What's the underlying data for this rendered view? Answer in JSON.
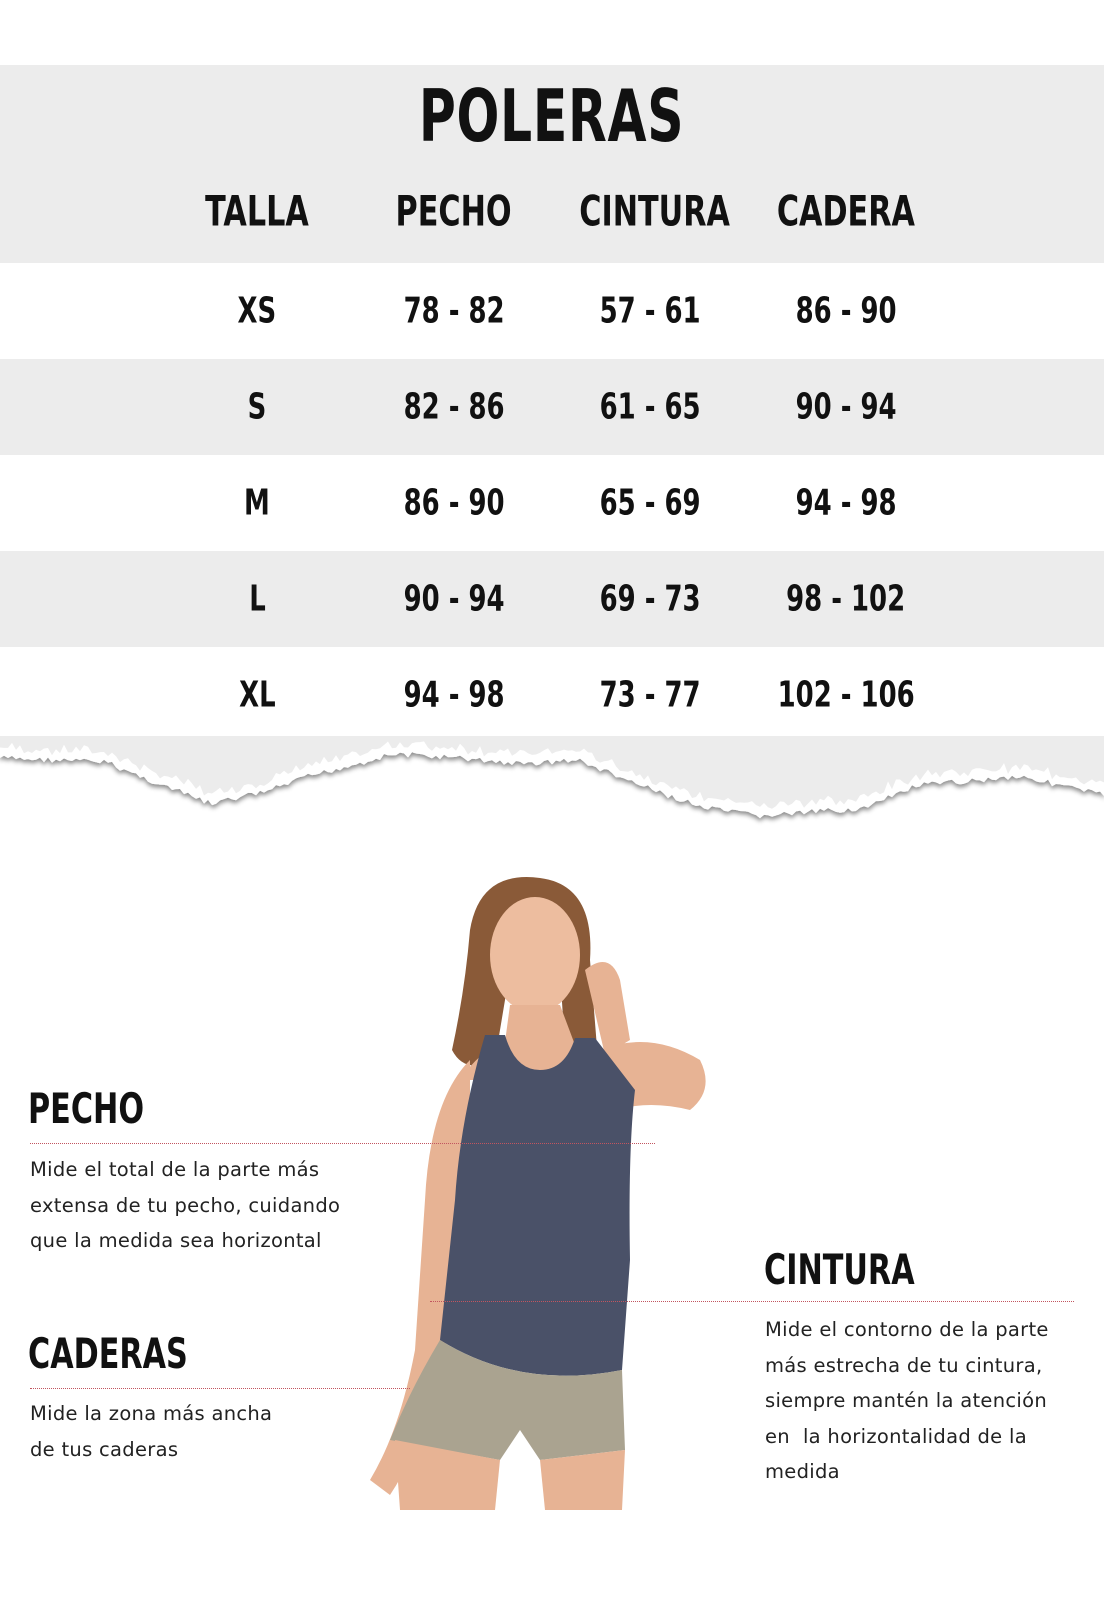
{
  "title": "POLERAS",
  "columns": [
    "TALLA",
    "PECHO",
    "CINTURA",
    "CADERA"
  ],
  "rows": [
    [
      "XS",
      "78 - 82",
      "57 - 61",
      "86 - 90"
    ],
    [
      "S",
      "82 - 86",
      "61 - 65",
      "90 - 94"
    ],
    [
      "M",
      "86 - 90",
      "65 - 69",
      "94 - 98"
    ],
    [
      "L",
      "90 - 94",
      "69 - 73",
      "98 - 102"
    ],
    [
      "XL",
      "94 - 98",
      "73 - 77",
      "102 - 106"
    ]
  ],
  "guide": {
    "pecho": {
      "heading": "PECHO",
      "lines": [
        "Mide el total de la parte más",
        "extensa de tu pecho, cuidando",
        "que la medida sea horizontal"
      ]
    },
    "caderas": {
      "heading": "CADERAS",
      "lines": [
        "Mide la zona más ancha",
        "de tus caderas"
      ]
    },
    "cintura": {
      "heading": "CINTURA",
      "lines": [
        "Mide el contorno de la parte",
        "más estrecha de tu cintura,",
        "siempre mantén la atención",
        "en  la horizontalidad de la",
        "medida"
      ]
    }
  },
  "colors": {
    "band": "#ececec",
    "guide_line": "#c2555f",
    "top": "#4a5168"
  }
}
